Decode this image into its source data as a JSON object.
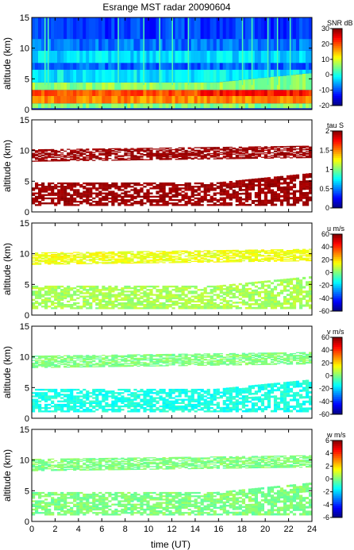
{
  "chart_data": {
    "type": "heatmap",
    "title": "Esrange MST radar 20090604",
    "x": {
      "label": "time (UT)",
      "range": [
        0,
        24
      ],
      "ticks": [
        "0",
        "2",
        "4",
        "6",
        "8",
        "10",
        "12",
        "14",
        "16",
        "18",
        "20",
        "22",
        "24"
      ]
    },
    "panels": [
      {
        "name": "snr",
        "ylabel": "altitude (km)",
        "yrange": [
          0,
          15
        ],
        "yticks": [
          "0",
          "5",
          "10",
          "15"
        ],
        "colorbar": {
          "label": "SNR dB",
          "range": [
            -20,
            30
          ],
          "ticks": [
            "30",
            "20",
            "10",
            "0",
            "-10",
            "-20"
          ]
        }
      },
      {
        "name": "tau",
        "ylabel": "altitude (km)",
        "yrange": [
          0,
          15
        ],
        "yticks": [
          "0",
          "5",
          "10",
          "15"
        ],
        "colorbar": {
          "label": "tau S",
          "range": [
            0,
            2
          ],
          "ticks": [
            "2",
            "1.5",
            "1",
            "0.5",
            "0"
          ]
        }
      },
      {
        "name": "u",
        "ylabel": "altitude (km)",
        "yrange": [
          0,
          15
        ],
        "yticks": [
          "0",
          "5",
          "10",
          "15"
        ],
        "colorbar": {
          "label": "u m/s",
          "range": [
            -60,
            60
          ],
          "ticks": [
            "60",
            "40",
            "20",
            "0",
            "-20",
            "-40",
            "-60"
          ]
        }
      },
      {
        "name": "v",
        "ylabel": "altitude (km)",
        "yrange": [
          0,
          15
        ],
        "yticks": [
          "0",
          "5",
          "10",
          "15"
        ],
        "colorbar": {
          "label": "v m/s",
          "range": [
            -60,
            60
          ],
          "ticks": [
            "60",
            "40",
            "20",
            "0",
            "-20",
            "-40",
            "-60"
          ]
        }
      },
      {
        "name": "w",
        "ylabel": "altitude (km)",
        "yrange": [
          0,
          15
        ],
        "yticks": [
          "0",
          "5",
          "10",
          "15"
        ],
        "colorbar": {
          "label": "w m/s",
          "range": [
            -6,
            6
          ],
          "ticks": [
            "6",
            "4",
            "2",
            "0",
            "-2",
            "-4",
            "-6"
          ]
        }
      }
    ],
    "grid": false,
    "colormap": [
      "#00007f",
      "#0000ff",
      "#007fff",
      "#00ffff",
      "#7fff7f",
      "#ffff00",
      "#ff7f00",
      "#ff0000",
      "#7f0000"
    ]
  }
}
